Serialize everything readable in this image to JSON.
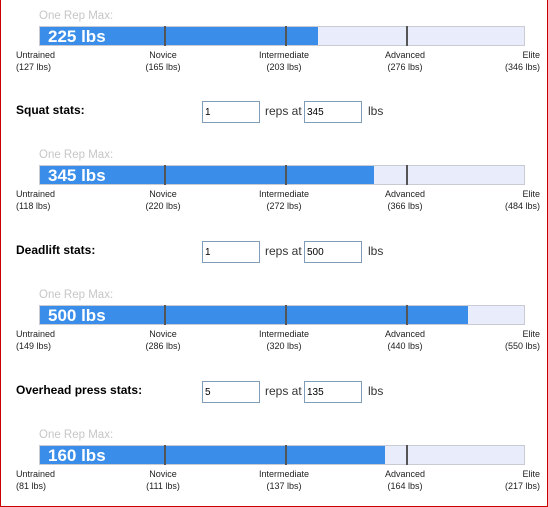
{
  "colors": {
    "bar_fill": "#3a8ee9",
    "bar_track": "#e9ecfa",
    "frame": "#cc0000"
  },
  "one_rep_max_label": "One Rep Max:",
  "levels": [
    "Untrained",
    "Novice",
    "Intermediate",
    "Advanced",
    "Elite"
  ],
  "reps_label": "reps at",
  "lbs_label": "lbs",
  "bars": [
    {
      "value": "225 lbs",
      "fill_fraction": 0.574,
      "thresholds": [
        "(127 lbs)",
        "(165 lbs)",
        "(203 lbs)",
        "(276 lbs)",
        "(346 lbs)"
      ]
    },
    {
      "value": "345 lbs",
      "fill_fraction": 0.691,
      "thresholds": [
        "(118 lbs)",
        "(220 lbs)",
        "(272 lbs)",
        "(366 lbs)",
        "(484 lbs)"
      ]
    },
    {
      "value": "500 lbs",
      "fill_fraction": 0.885,
      "thresholds": [
        "(149 lbs)",
        "(286 lbs)",
        "(320 lbs)",
        "(440 lbs)",
        "(550 lbs)"
      ]
    },
    {
      "value": "160 lbs",
      "fill_fraction": 0.712,
      "thresholds": [
        "(81 lbs)",
        "(111 lbs)",
        "(137 lbs)",
        "(164 lbs)",
        "(217 lbs)"
      ]
    }
  ],
  "stats": [
    {
      "label": "Squat stats:",
      "reps": "1",
      "weight": "345"
    },
    {
      "label": "Deadlift stats:",
      "reps": "1",
      "weight": "500"
    },
    {
      "label": "Overhead press stats:",
      "reps": "5",
      "weight": "135"
    }
  ]
}
